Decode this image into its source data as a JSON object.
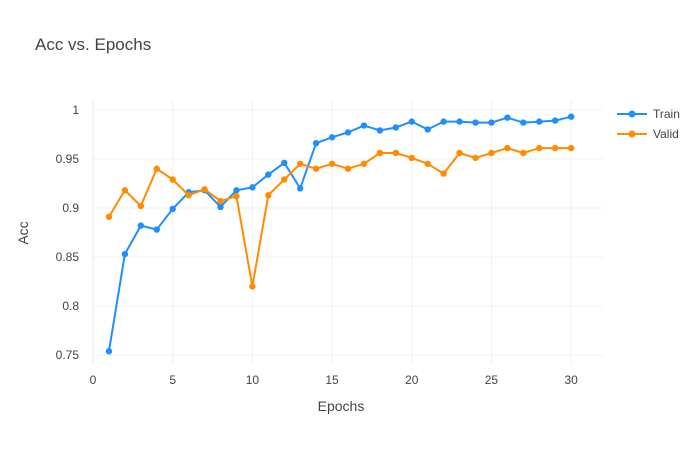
{
  "chart_data": {
    "type": "line",
    "title": "Acc vs. Epochs",
    "xlabel": "Epochs",
    "ylabel": "Acc",
    "xlim": [
      0,
      32
    ],
    "ylim": [
      0.74,
      1.01
    ],
    "xticks": [
      0,
      5,
      10,
      15,
      20,
      25,
      30
    ],
    "yticks": [
      0.75,
      0.8,
      0.85,
      0.9,
      0.95,
      1
    ],
    "ytick_labels": [
      "0.75",
      "0.8",
      "0.85",
      "0.9",
      "0.95",
      "1"
    ],
    "grid": true,
    "legend_position": "top-right",
    "x": [
      1,
      2,
      3,
      4,
      5,
      6,
      7,
      8,
      9,
      10,
      11,
      12,
      13,
      14,
      15,
      16,
      17,
      18,
      19,
      20,
      21,
      22,
      23,
      24,
      25,
      26,
      27,
      28,
      29,
      30
    ],
    "series": [
      {
        "name": "Train",
        "color": "#1f8fff",
        "values": [
          0.754,
          0.853,
          0.882,
          0.878,
          0.899,
          0.916,
          0.918,
          0.901,
          0.918,
          0.921,
          0.934,
          0.946,
          0.92,
          0.966,
          0.972,
          0.977,
          0.984,
          0.979,
          0.982,
          0.988,
          0.98,
          0.988,
          0.988,
          0.987,
          0.987,
          0.992,
          0.987,
          0.988,
          0.989,
          0.993
        ]
      },
      {
        "name": "Valid",
        "color": "#ff8c00",
        "values": [
          0.891,
          0.918,
          0.902,
          0.94,
          0.929,
          0.913,
          0.919,
          0.907,
          0.912,
          0.82,
          0.913,
          0.929,
          0.945,
          0.94,
          0.945,
          0.94,
          0.945,
          0.956,
          0.956,
          0.951,
          0.945,
          0.935,
          0.956,
          0.951,
          0.956,
          0.961,
          0.956,
          0.961,
          0.961,
          0.961
        ]
      }
    ]
  }
}
